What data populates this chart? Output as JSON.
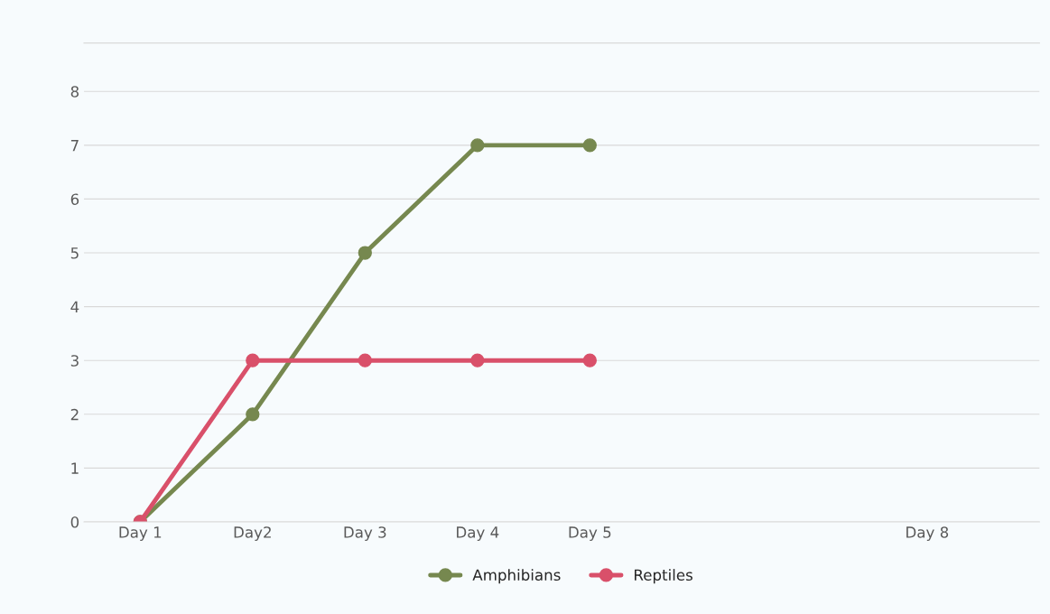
{
  "chart_data": {
    "type": "line",
    "categories": [
      "Day 1",
      "Day2",
      "Day 3",
      "Day 4",
      "Day 5",
      null,
      null,
      "Day 8"
    ],
    "series": [
      {
        "name": "Amphibians",
        "color": "#76884f",
        "values": [
          0,
          2,
          5,
          7,
          7,
          null,
          null,
          null
        ]
      },
      {
        "name": "Reptiles",
        "color": "#d9506a",
        "values": [
          0,
          3,
          3,
          3,
          3,
          null,
          null,
          null
        ]
      }
    ],
    "ylim": [
      0,
      8.9
    ],
    "yticks": [
      0,
      1,
      2,
      3,
      4,
      5,
      6,
      7,
      8
    ],
    "grid": "y",
    "legend": "bottom",
    "marker": "circle",
    "line_style": "solid"
  }
}
